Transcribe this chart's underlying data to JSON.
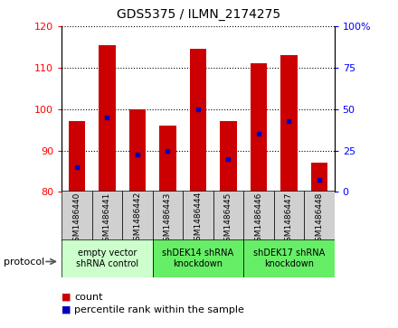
{
  "title": "GDS5375 / ILMN_2174275",
  "samples": [
    "GSM1486440",
    "GSM1486441",
    "GSM1486442",
    "GSM1486443",
    "GSM1486444",
    "GSM1486445",
    "GSM1486446",
    "GSM1486447",
    "GSM1486448"
  ],
  "counts": [
    97,
    115.5,
    100,
    96,
    114.5,
    97,
    111,
    113,
    87
  ],
  "percentile_values": [
    86,
    98,
    89,
    90,
    100,
    88,
    94,
    97,
    83
  ],
  "bar_bottom": 80,
  "ylim": [
    80,
    120
  ],
  "y2lim": [
    0,
    100
  ],
  "yticks": [
    80,
    90,
    100,
    110,
    120
  ],
  "y2ticks": [
    0,
    25,
    50,
    75,
    100
  ],
  "y2ticklabels": [
    "0",
    "25",
    "50",
    "75",
    "100%"
  ],
  "bar_color": "#CC0000",
  "dot_color": "#0000BB",
  "groups": [
    {
      "label": "empty vector\nshRNA control",
      "start": 0,
      "end": 3,
      "color": "#CCFFCC"
    },
    {
      "label": "shDEK14 shRNA\nknockdown",
      "start": 3,
      "end": 6,
      "color": "#66EE66"
    },
    {
      "label": "shDEK17 shRNA\nknockdown",
      "start": 6,
      "end": 9,
      "color": "#66EE66"
    }
  ],
  "legend_count_label": "count",
  "legend_percentile_label": "percentile rank within the sample",
  "protocol_label": "protocol"
}
